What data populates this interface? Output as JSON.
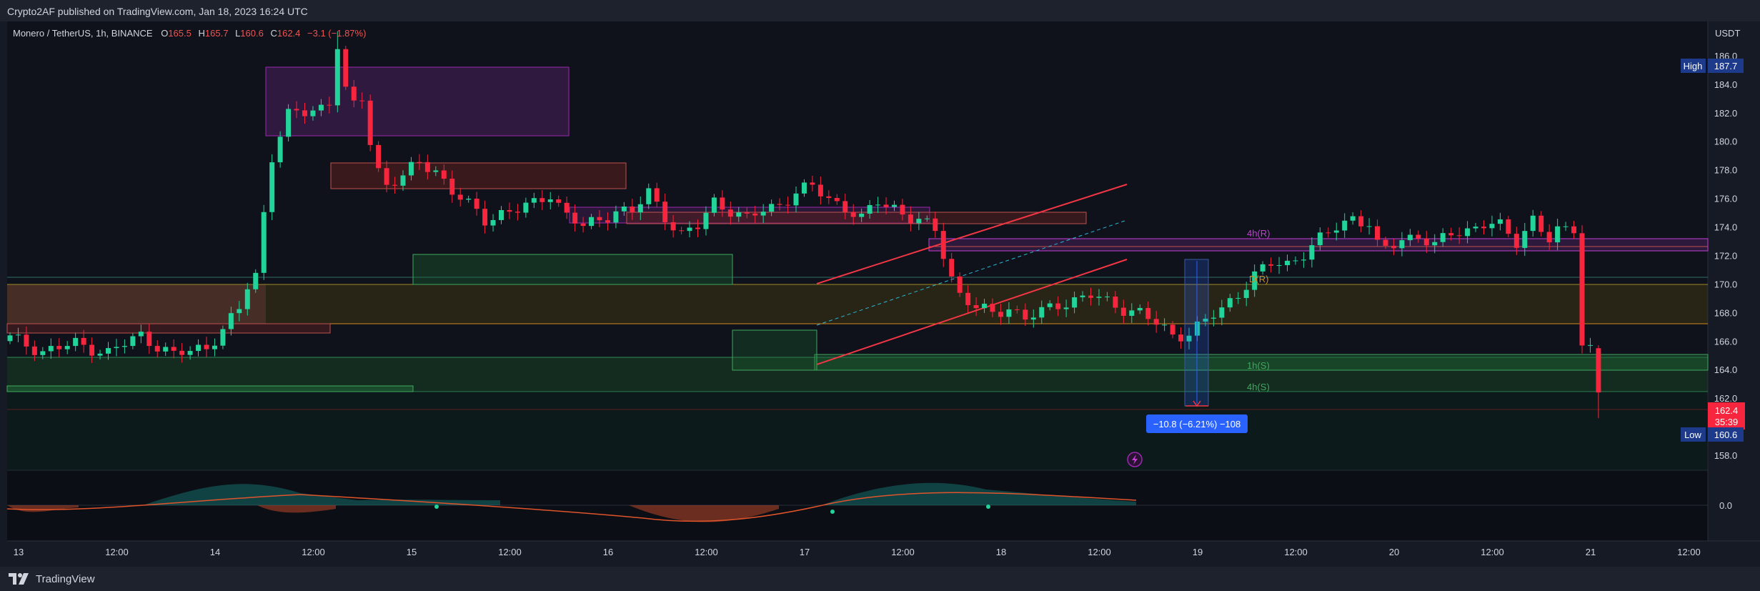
{
  "header": {
    "published": "Crypto2AF published on TradingView.com, Jan 18, 2023 16:24 UTC"
  },
  "footer": {
    "brand": "TradingView"
  },
  "legend": {
    "symbol": "Monero / TetherUS, 1h, BINANCE",
    "o_label": "O",
    "o": "165.5",
    "h_label": "H",
    "h": "165.7",
    "l_label": "L",
    "l": "160.6",
    "c_label": "C",
    "c": "162.4",
    "change": "−3.1 (−1.87%)"
  },
  "price_axis": {
    "unit": "USDT",
    "ticks": [
      "158.0",
      "160.0",
      "162.0",
      "164.0",
      "166.0",
      "168.0",
      "170.0",
      "172.0",
      "174.0",
      "176.0",
      "178.0",
      "180.0",
      "182.0",
      "184.0",
      "186.0"
    ],
    "high_label": "High",
    "high_value": "187.7",
    "low_label": "Low",
    "low_value": "160.6",
    "last_price": "162.4",
    "countdown": "35:39"
  },
  "oscillator_axis": {
    "ticks": [
      "0.0"
    ]
  },
  "time_axis": {
    "ticks": [
      "13",
      "12:00",
      "14",
      "12:00",
      "15",
      "12:00",
      "16",
      "12:00",
      "17",
      "12:00",
      "18",
      "12:00",
      "19",
      "12:00",
      "20",
      "12:00",
      "21",
      "12:00"
    ]
  },
  "zones": {
    "label_4h_r": "4h(R)",
    "label_d_r": "D(R)",
    "label_1h_s": "1h(S)",
    "label_4h_s": "4h(S)"
  },
  "measure": {
    "label": "−10.8 (−6.21%) −108"
  },
  "colors": {
    "up": "#26a69a",
    "down": "#ef5350",
    "up_bright": "#22d39a",
    "down_bright": "#f7253d",
    "bg": "#0f121a",
    "axis_bg": "#151a25",
    "text": "#d1d4dc",
    "purple": "#9c27b0",
    "orange": "#ff9800",
    "green_zone": "#4caf50",
    "channel": "#f23645",
    "measure_blue": "#2962ff",
    "magenta_label": "#c53fd6"
  },
  "chart_data": {
    "type": "candlestick",
    "symbol": "Monero / TetherUS",
    "timeframe": "1h",
    "exchange": "BINANCE",
    "x_start": "2023-01-12T21:00Z",
    "x_end": "2023-01-21T12:00Z",
    "ylim": [
      157,
      188.4
    ],
    "last_bar": {
      "open": 165.5,
      "high": 165.7,
      "low": 160.6,
      "close": 162.4
    },
    "period_high": 187.7,
    "period_low": 160.6,
    "candles": []
  }
}
